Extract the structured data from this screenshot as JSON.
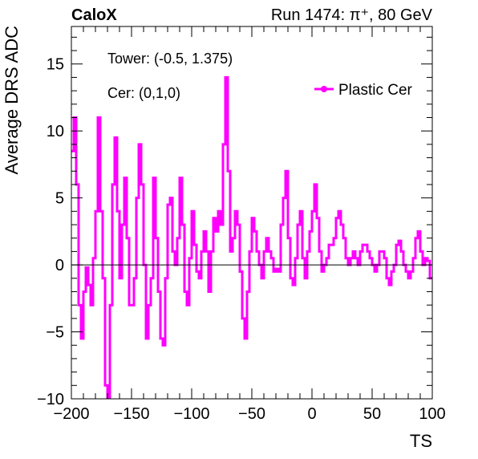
{
  "header": {
    "left_label": "CaloX",
    "right_label": "Run 1474: π⁺, 80 GeV"
  },
  "annotations": [
    "Tower: (-0.5, 1.375)",
    "Cer: (0,1,0)"
  ],
  "colors": {
    "series": "#ff00ff",
    "axis": "#000000",
    "zero_line": "#000000"
  },
  "chart_data": {
    "type": "line",
    "title": "",
    "xlabel": "TS",
    "ylabel": "Average DRS ADC",
    "xlim": [
      -200,
      100
    ],
    "ylim": [
      -10,
      17.8
    ],
    "xticks": [
      -200,
      -150,
      -100,
      -50,
      0,
      50,
      100
    ],
    "yticks": [
      -10,
      -5,
      0,
      5,
      10,
      15
    ],
    "grid": false,
    "legend": {
      "position": "top-right",
      "entries": [
        "Plastic Cer"
      ]
    },
    "series": [
      {
        "name": "Plastic Cer",
        "color": "#ff00ff",
        "step": 2,
        "x": [
          -200,
          -198,
          -196,
          -194,
          -192,
          -190,
          -188,
          -186,
          -184,
          -182,
          -180,
          -178,
          -176,
          -174,
          -172,
          -170,
          -168,
          -166,
          -164,
          -162,
          -160,
          -158,
          -156,
          -154,
          -152,
          -150,
          -148,
          -146,
          -144,
          -142,
          -140,
          -138,
          -136,
          -134,
          -132,
          -130,
          -128,
          -126,
          -124,
          -122,
          -120,
          -118,
          -116,
          -114,
          -112,
          -110,
          -108,
          -106,
          -104,
          -102,
          -100,
          -98,
          -96,
          -94,
          -92,
          -90,
          -88,
          -86,
          -84,
          -82,
          -80,
          -78,
          -76,
          -74,
          -72,
          -70,
          -68,
          -66,
          -64,
          -62,
          -60,
          -58,
          -56,
          -54,
          -52,
          -50,
          -48,
          -46,
          -44,
          -42,
          -40,
          -38,
          -36,
          -34,
          -32,
          -30,
          -28,
          -26,
          -24,
          -22,
          -20,
          -18,
          -16,
          -14,
          -12,
          -10,
          -8,
          -6,
          -4,
          -2,
          0,
          2,
          4,
          6,
          8,
          10,
          12,
          14,
          16,
          18,
          20,
          22,
          24,
          26,
          28,
          30,
          32,
          34,
          36,
          38,
          40,
          42,
          44,
          46,
          48,
          50,
          52,
          54,
          56,
          58,
          60,
          62,
          64,
          66,
          68,
          70,
          72,
          74,
          76,
          78,
          80,
          82,
          84,
          86,
          88,
          90,
          92,
          94,
          96,
          98,
          100
        ],
        "y": [
          8.5,
          11,
          6,
          -3,
          -5.5,
          -2,
          -0.2,
          -1.5,
          -3,
          0.5,
          4,
          11,
          4,
          -1,
          -9,
          -10,
          -3,
          6,
          9.5,
          4,
          -1,
          3,
          6.5,
          2,
          -3,
          -3,
          -1,
          5,
          9,
          6,
          0,
          -5.5,
          -3,
          -1,
          6.5,
          2,
          -2,
          -5.5,
          -6,
          -1,
          4.5,
          5,
          1,
          0,
          2,
          6.5,
          3,
          -2,
          -3,
          0.5,
          4,
          1.5,
          -0.5,
          -1,
          1,
          2.5,
          1,
          -2,
          1,
          3.5,
          2.5,
          4,
          3,
          9,
          14,
          7,
          1,
          2,
          4,
          3,
          -0.5,
          -4,
          -5.5,
          -2,
          1,
          3.5,
          2.5,
          1,
          0,
          -1,
          1,
          2,
          1,
          0.5,
          -0.5,
          -0.3,
          -0.5,
          3,
          5,
          7,
          2,
          -1,
          -1.5,
          0.5,
          3,
          4,
          0.5,
          -1,
          1,
          2.5,
          4,
          6,
          3.5,
          1,
          -0.5,
          0,
          0.5,
          1.5,
          1.5,
          2,
          3.5,
          4,
          3,
          2,
          0.5,
          0,
          0.5,
          1,
          0.5,
          0,
          1,
          1.5,
          1.5,
          1,
          0.5,
          0,
          -0.5,
          0,
          1,
          1,
          0.5,
          -1,
          -1.5,
          -0.5,
          0,
          1.5,
          1.8,
          1,
          0,
          -0.5,
          -1,
          -0.5,
          0.5,
          2,
          2.5,
          1,
          0,
          0.5,
          0.3,
          -1,
          -1
        ]
      }
    ]
  }
}
